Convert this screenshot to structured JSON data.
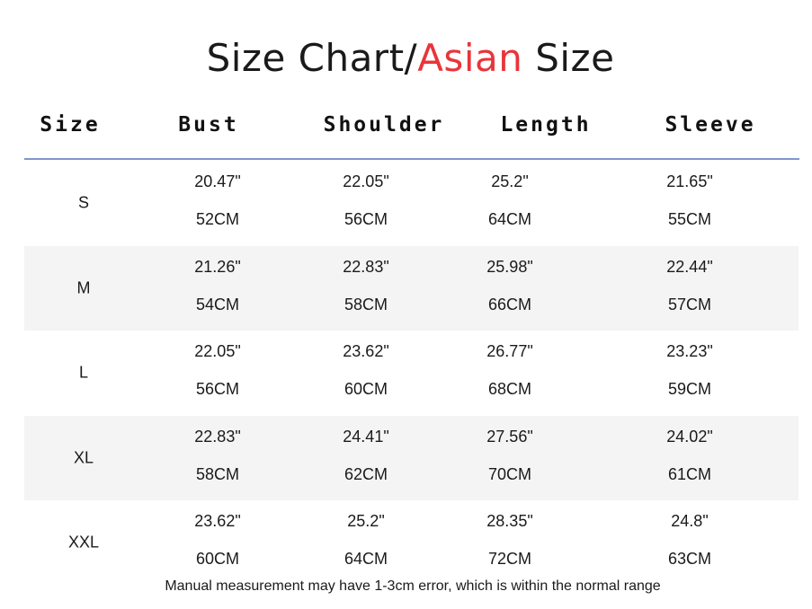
{
  "title": {
    "part1": "Size Chart/",
    "accent": "Asian",
    "part2": " Size",
    "accent_color": "#e8353a"
  },
  "columns": [
    "Size",
    "Bust",
    "Shoulder",
    "Length",
    "Sleeve"
  ],
  "rows": [
    {
      "size": "S",
      "bust_in": "20.47\"",
      "bust_cm": "52CM",
      "shoulder_in": "22.05\"",
      "shoulder_cm": "56CM",
      "length_in": "25.2\"",
      "length_cm": "64CM",
      "sleeve_in": "21.65\"",
      "sleeve_cm": "55CM"
    },
    {
      "size": "M",
      "bust_in": "21.26\"",
      "bust_cm": "54CM",
      "shoulder_in": "22.83\"",
      "shoulder_cm": "58CM",
      "length_in": "25.98\"",
      "length_cm": "66CM",
      "sleeve_in": "22.44\"",
      "sleeve_cm": "57CM"
    },
    {
      "size": "L",
      "bust_in": "22.05\"",
      "bust_cm": "56CM",
      "shoulder_in": "23.62\"",
      "shoulder_cm": "60CM",
      "length_in": "26.77\"",
      "length_cm": "68CM",
      "sleeve_in": "23.23\"",
      "sleeve_cm": "59CM"
    },
    {
      "size": "XL",
      "bust_in": "22.83\"",
      "bust_cm": "58CM",
      "shoulder_in": "24.41\"",
      "shoulder_cm": "62CM",
      "length_in": "27.56\"",
      "length_cm": "70CM",
      "sleeve_in": "24.02\"",
      "sleeve_cm": "61CM"
    },
    {
      "size": "XXL",
      "bust_in": "23.62\"",
      "bust_cm": "60CM",
      "shoulder_in": "25.2\"",
      "shoulder_cm": "64CM",
      "length_in": "28.35\"",
      "length_cm": "72CM",
      "sleeve_in": "24.8\"",
      "sleeve_cm": "63CM"
    }
  ],
  "note": "Manual measurement may have 1-3cm error, which is within the normal range",
  "colors": {
    "header_line": "#7f96cf",
    "alt_row": "#f4f4f4"
  }
}
